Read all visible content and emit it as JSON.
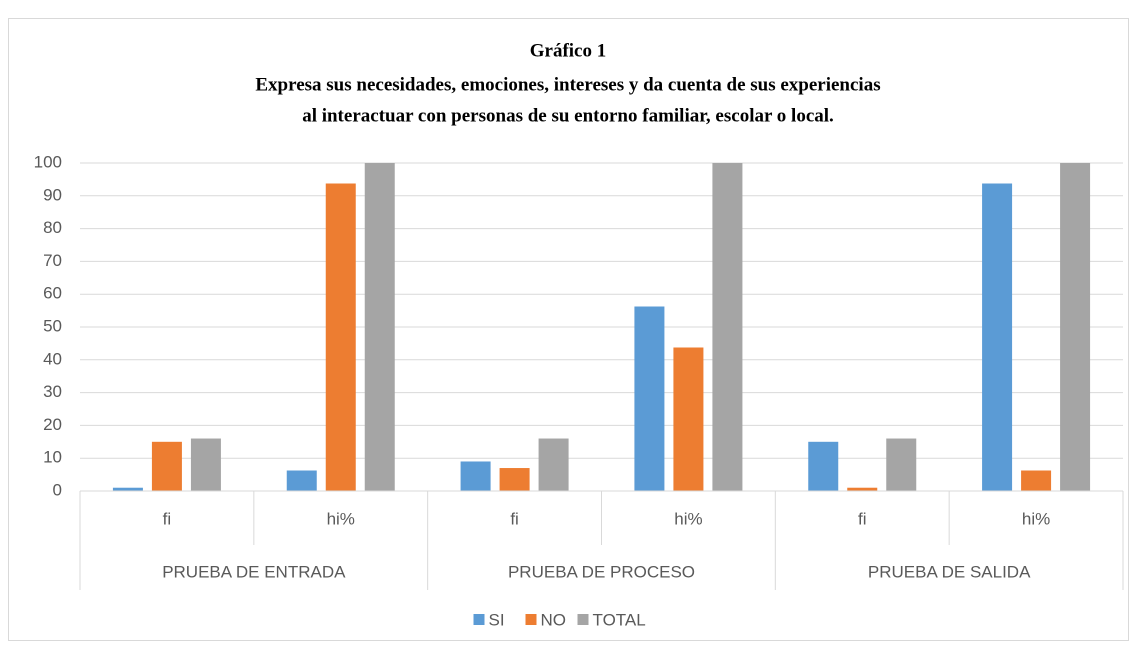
{
  "chart_data": {
    "type": "bar",
    "title": "Gráfico 1",
    "subtitle": [
      "Expresa sus necesidades, emociones, intereses y da cuenta de sus experiencias",
      "al interactuar con personas de su entorno familiar, escolar o local."
    ],
    "categories": [
      "fi",
      "hi%",
      "fi",
      "hi%",
      "fi",
      "hi%"
    ],
    "groups": [
      "PRUEBA DE ENTRADA",
      "PRUEBA DE PROCESO",
      "PRUEBA DE SALIDA"
    ],
    "series": [
      {
        "name": "SI",
        "color": "#5b9bd5",
        "values": [
          1,
          6.25,
          9,
          56.25,
          15,
          93.75
        ]
      },
      {
        "name": "NO",
        "color": "#ed7d31",
        "values": [
          15,
          93.75,
          7,
          43.75,
          1,
          6.25
        ]
      },
      {
        "name": "TOTAL",
        "color": "#a5a5a5",
        "values": [
          16,
          100,
          16,
          100,
          16,
          100
        ]
      }
    ],
    "ylim": [
      0,
      100
    ],
    "yticks": [
      0,
      10,
      20,
      30,
      40,
      50,
      60,
      70,
      80,
      90,
      100
    ],
    "grid": true,
    "legend": "bottom"
  }
}
